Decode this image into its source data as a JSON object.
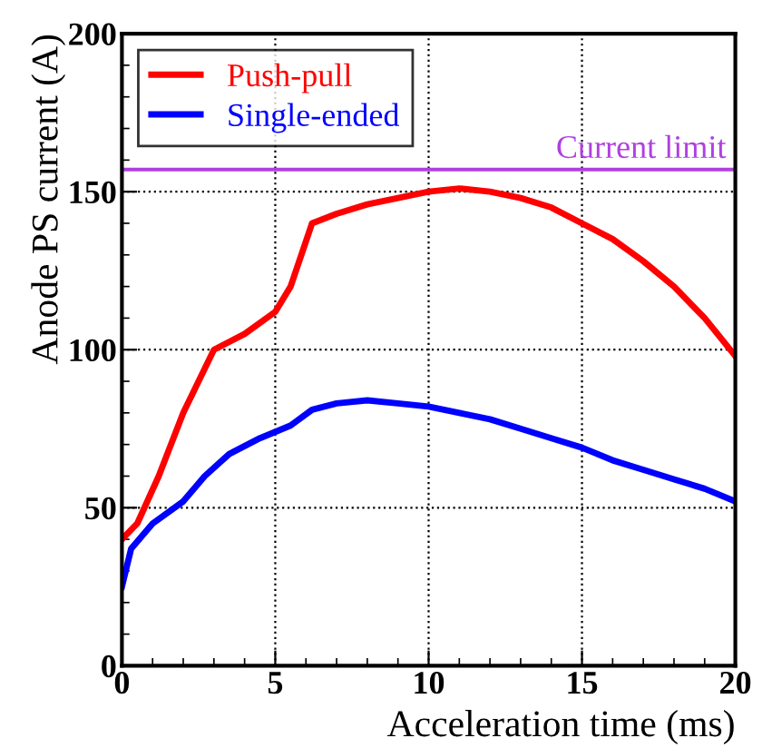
{
  "chart_data": {
    "type": "line",
    "xlabel": "Acceleration time (ms)",
    "ylabel": "Anode PS current (A)",
    "xlim": [
      0,
      20
    ],
    "ylim": [
      0,
      200
    ],
    "xticks": [
      0,
      5,
      10,
      15,
      20
    ],
    "yticks": [
      0,
      50,
      100,
      150,
      200
    ],
    "grid": true,
    "legend": "top left",
    "line_style": "solid",
    "marker": "none",
    "series": [
      {
        "name": "Push-pull",
        "color": "#ff0000",
        "x": [
          0,
          0.5,
          1.2,
          2,
          3,
          4,
          5,
          5.5,
          6.2,
          7,
          8,
          9,
          10,
          11,
          12,
          13,
          14,
          15,
          16,
          17,
          18,
          19,
          20
        ],
        "values": [
          40,
          45,
          60,
          80,
          100,
          105,
          112,
          120,
          140,
          143,
          146,
          148,
          150,
          151,
          150,
          148,
          145,
          140,
          135,
          128,
          120,
          110,
          98
        ]
      },
      {
        "name": "Single-ended",
        "color": "#0000ff",
        "x": [
          0,
          0.3,
          1,
          2,
          2.7,
          3.5,
          4.5,
          5.5,
          6.2,
          7,
          8,
          9,
          10,
          11,
          12,
          13,
          14,
          15,
          16,
          17,
          18,
          19,
          20
        ],
        "values": [
          25,
          37,
          45,
          52,
          60,
          67,
          72,
          76,
          81,
          83,
          84,
          83,
          82,
          80,
          78,
          75,
          72,
          69,
          65,
          62,
          59,
          56,
          52
        ]
      }
    ],
    "ref_lines": [
      {
        "axis": "y",
        "value": 157,
        "label": "Current limit",
        "color": "#b040e0",
        "line_style": "solid"
      }
    ]
  }
}
